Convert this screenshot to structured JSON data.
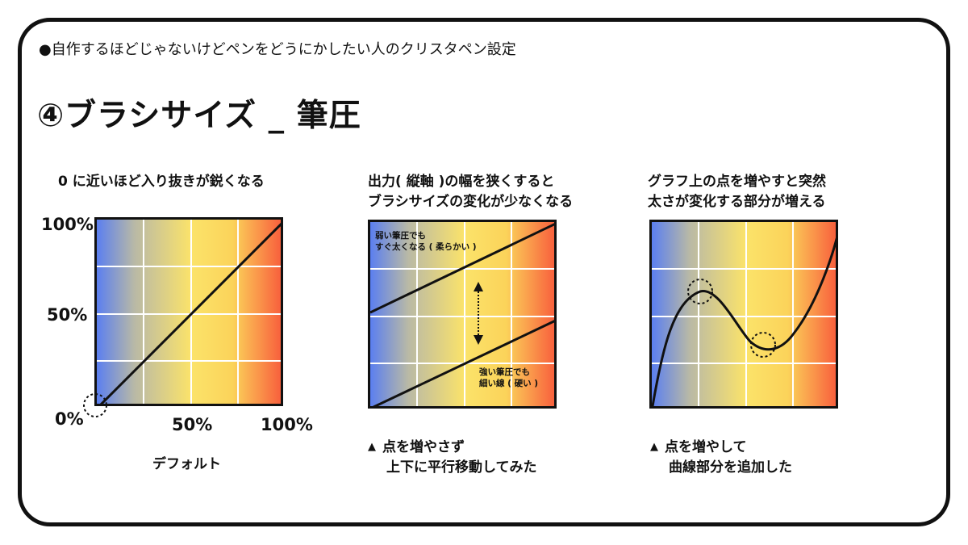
{
  "header": {
    "subtitle": "●自作するほどじゃないけどペンをどうにかしたい人のクリスタペン設定",
    "title": "④ブラシサイズ _ 筆圧"
  },
  "colors": {
    "gradient_left": "#5b7ff0",
    "gradient_mid": "#fbe36a",
    "gradient_right": "#f8553a",
    "border": "#111111"
  },
  "panel1": {
    "caption": "0 に近いほど入り抜きが鋭くなる",
    "y_ticks": [
      "100%",
      "50%",
      "0%"
    ],
    "x_ticks": [
      "50%",
      "100%"
    ],
    "bottom_label": "デフォルト"
  },
  "panel2": {
    "caption_line1": "出力( 縦軸 )の幅を狭くすると",
    "caption_line2": "ブラシサイズの変化が少なくなる",
    "inner_top_line1": "弱い筆圧でも",
    "inner_top_line2": "すぐ太くなる ( 柔らかい )",
    "inner_bottom_line1": "強い筆圧でも",
    "inner_bottom_line2": "細い線 ( 硬い )",
    "note_marker": "▲",
    "note_line1": "点を増やさず",
    "note_line2": "上下に平行移動してみた"
  },
  "panel3": {
    "caption_line1": "グラフ上の点を増やすと突然",
    "caption_line2": "太さが変化する部分が増える",
    "note_marker": "▲",
    "note_line1": "点を増やして",
    "note_line2": "曲線部分を追加した"
  }
}
